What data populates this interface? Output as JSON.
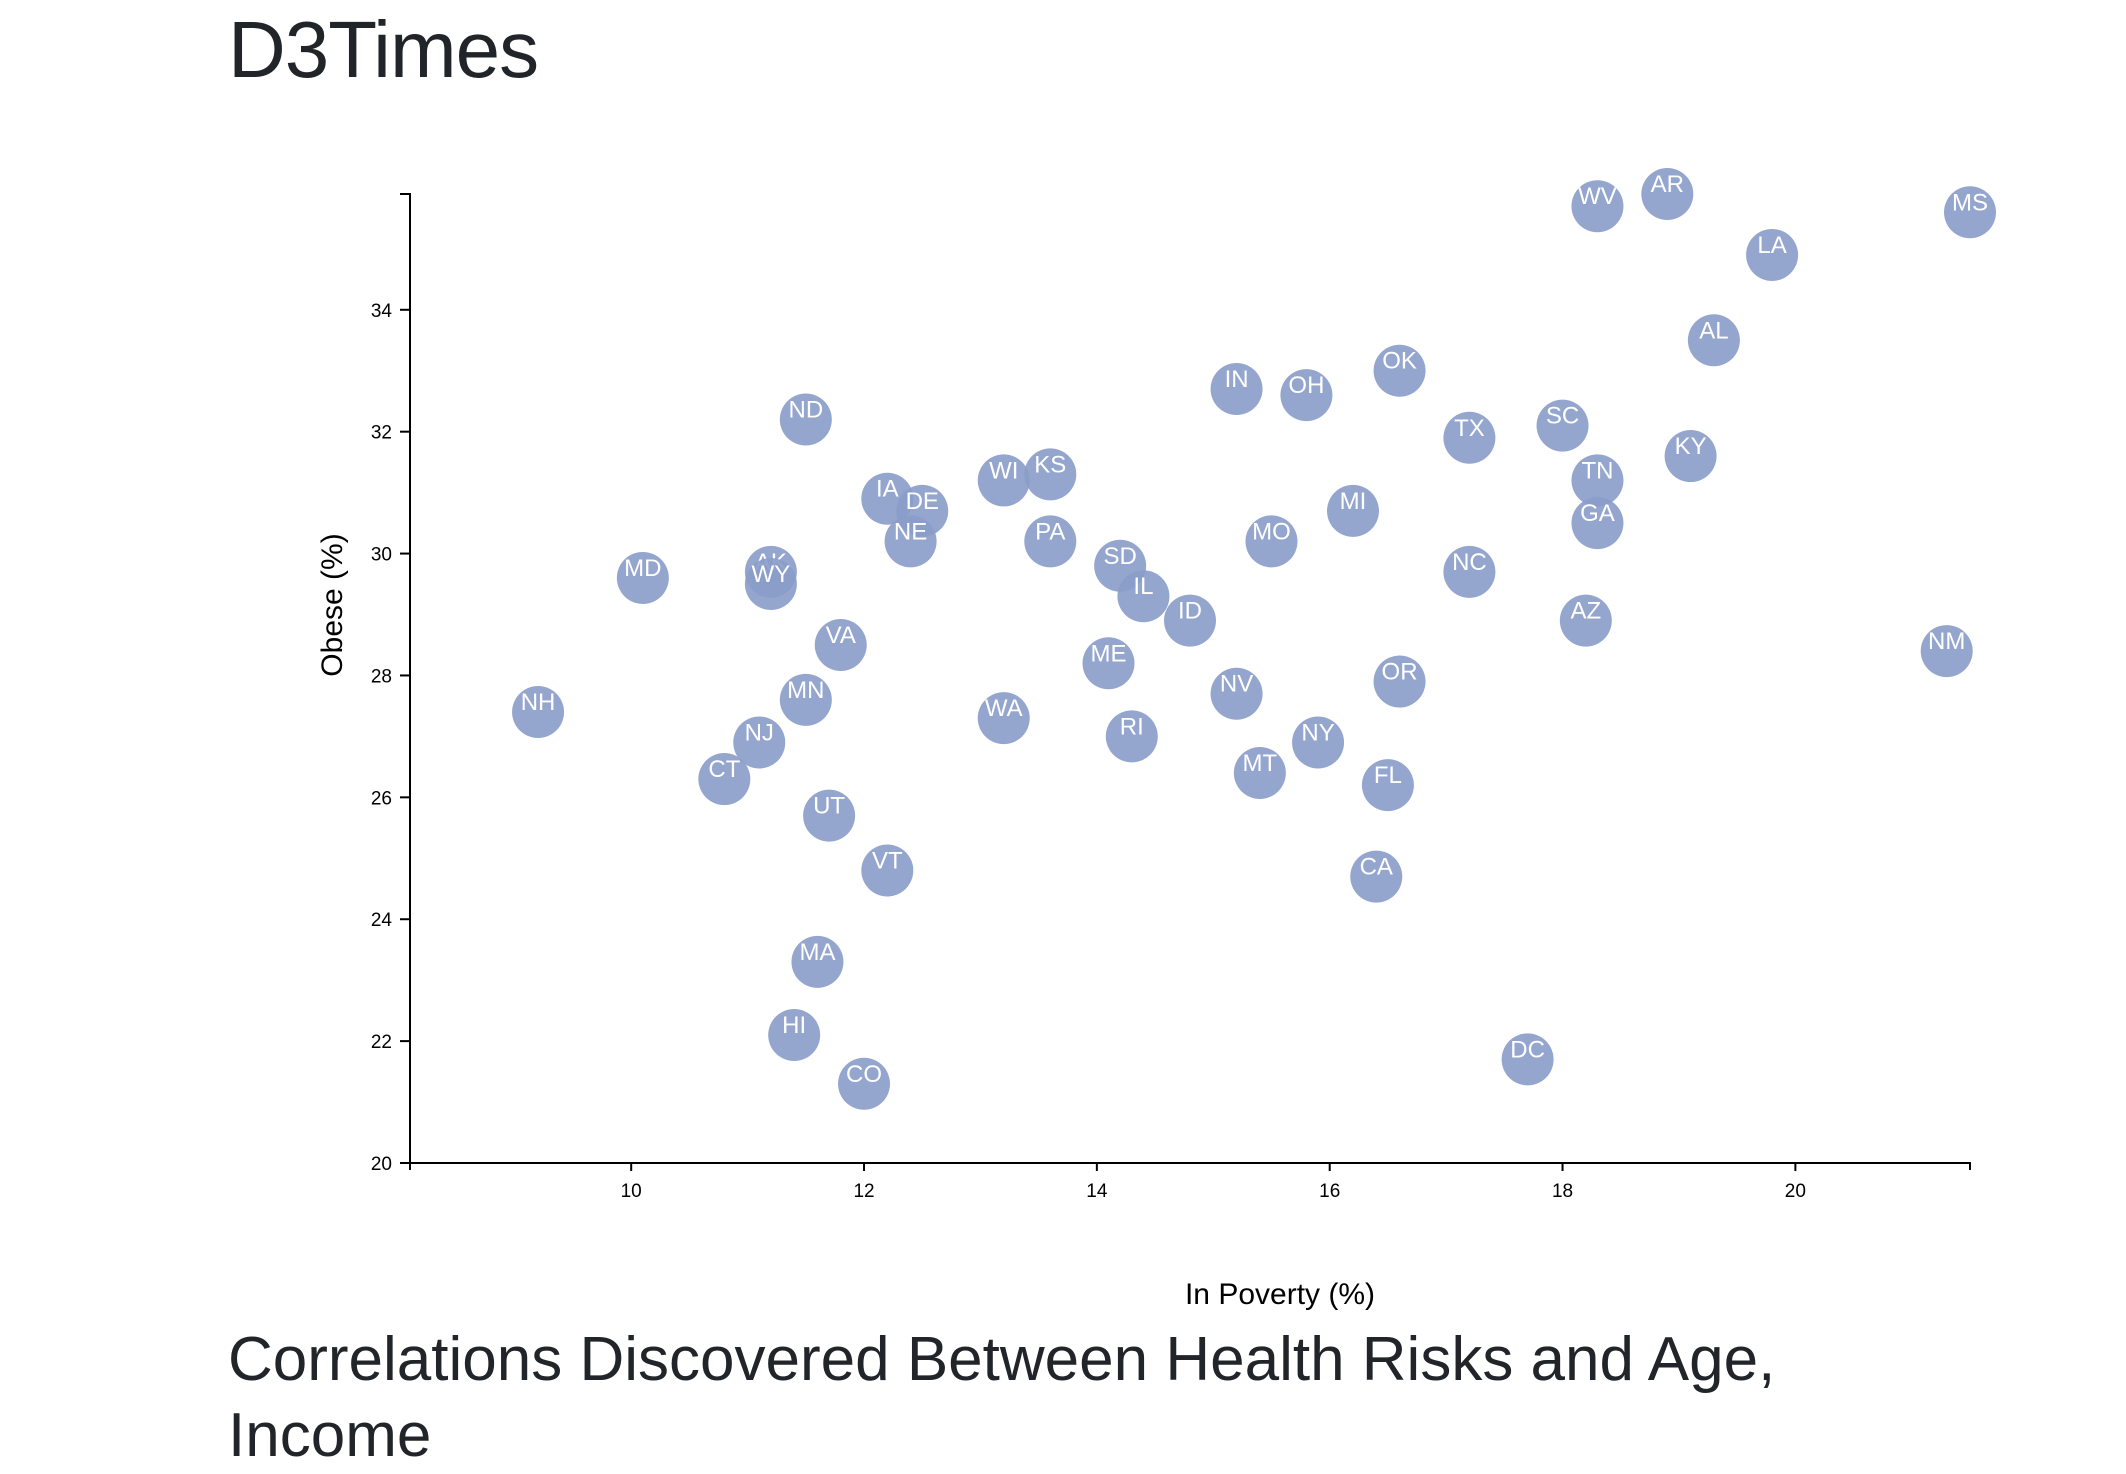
{
  "header": {
    "title": "D3Times"
  },
  "footer": {
    "heading": "Correlations Discovered Between Health Risks and Age, Income"
  },
  "colors": {
    "circle": "#8a9cc9",
    "circle_text": "#ffffff",
    "heading": "#212529"
  },
  "chart_data": {
    "type": "scatter",
    "title": "",
    "xlabel": "In Poverty (%)",
    "ylabel": "Obese (%)",
    "xlim": [
      8.1,
      21.5
    ],
    "ylim": [
      20,
      35.9
    ],
    "xticks": [
      10,
      12,
      14,
      16,
      18,
      20
    ],
    "yticks": [
      20,
      22,
      24,
      26,
      28,
      30,
      32,
      34
    ],
    "grid": false,
    "legend": "none",
    "points": [
      {
        "label": "NH",
        "x": 9.2,
        "y": 27.4
      },
      {
        "label": "MD",
        "x": 10.1,
        "y": 29.6
      },
      {
        "label": "AK",
        "x": 11.2,
        "y": 29.7
      },
      {
        "label": "WY",
        "x": 11.2,
        "y": 29.5
      },
      {
        "label": "CT",
        "x": 10.8,
        "y": 26.3
      },
      {
        "label": "NJ",
        "x": 11.1,
        "y": 26.9
      },
      {
        "label": "MN",
        "x": 11.5,
        "y": 27.6
      },
      {
        "label": "UT",
        "x": 11.7,
        "y": 25.7
      },
      {
        "label": "VA",
        "x": 11.8,
        "y": 28.5
      },
      {
        "label": "ND",
        "x": 11.5,
        "y": 32.2
      },
      {
        "label": "MA",
        "x": 11.6,
        "y": 23.3
      },
      {
        "label": "HI",
        "x": 11.4,
        "y": 22.1
      },
      {
        "label": "CO",
        "x": 12.0,
        "y": 21.3
      },
      {
        "label": "VT",
        "x": 12.2,
        "y": 24.8
      },
      {
        "label": "IA",
        "x": 12.2,
        "y": 30.9
      },
      {
        "label": "DE",
        "x": 12.5,
        "y": 30.7
      },
      {
        "label": "NE",
        "x": 12.4,
        "y": 30.2
      },
      {
        "label": "WA",
        "x": 13.2,
        "y": 27.3
      },
      {
        "label": "WI",
        "x": 13.2,
        "y": 31.2
      },
      {
        "label": "KS",
        "x": 13.6,
        "y": 31.3
      },
      {
        "label": "PA",
        "x": 13.6,
        "y": 30.2
      },
      {
        "label": "ME",
        "x": 14.1,
        "y": 28.2
      },
      {
        "label": "SD",
        "x": 14.2,
        "y": 29.8
      },
      {
        "label": "IL",
        "x": 14.4,
        "y": 29.3
      },
      {
        "label": "RI",
        "x": 14.3,
        "y": 27.0
      },
      {
        "label": "ID",
        "x": 14.8,
        "y": 28.9
      },
      {
        "label": "IN",
        "x": 15.2,
        "y": 32.7
      },
      {
        "label": "NV",
        "x": 15.2,
        "y": 27.7
      },
      {
        "label": "MT",
        "x": 15.4,
        "y": 26.4
      },
      {
        "label": "MO",
        "x": 15.5,
        "y": 30.2
      },
      {
        "label": "OH",
        "x": 15.8,
        "y": 32.6
      },
      {
        "label": "NY",
        "x": 15.9,
        "y": 26.9
      },
      {
        "label": "MI",
        "x": 16.2,
        "y": 30.7
      },
      {
        "label": "CA",
        "x": 16.4,
        "y": 24.7
      },
      {
        "label": "FL",
        "x": 16.5,
        "y": 26.2
      },
      {
        "label": "OR",
        "x": 16.6,
        "y": 27.9
      },
      {
        "label": "OK",
        "x": 16.6,
        "y": 33.0
      },
      {
        "label": "TX",
        "x": 17.2,
        "y": 31.9
      },
      {
        "label": "NC",
        "x": 17.2,
        "y": 29.7
      },
      {
        "label": "DC",
        "x": 17.7,
        "y": 21.7
      },
      {
        "label": "SC",
        "x": 18.0,
        "y": 32.1
      },
      {
        "label": "AZ",
        "x": 18.2,
        "y": 28.9
      },
      {
        "label": "TN",
        "x": 18.3,
        "y": 31.2
      },
      {
        "label": "GA",
        "x": 18.3,
        "y": 30.5
      },
      {
        "label": "WV",
        "x": 18.3,
        "y": 35.7
      },
      {
        "label": "AR",
        "x": 18.9,
        "y": 35.9
      },
      {
        "label": "KY",
        "x": 19.1,
        "y": 31.6
      },
      {
        "label": "AL",
        "x": 19.3,
        "y": 33.5
      },
      {
        "label": "LA",
        "x": 19.8,
        "y": 34.9
      },
      {
        "label": "NM",
        "x": 21.3,
        "y": 28.4
      },
      {
        "label": "MS",
        "x": 21.5,
        "y": 35.6
      }
    ]
  }
}
